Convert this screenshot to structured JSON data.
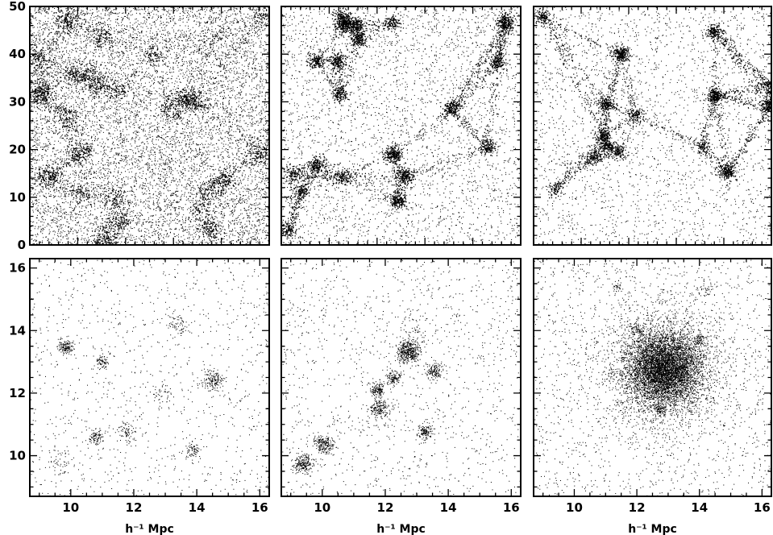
{
  "chart_data": [
    {
      "type": "scatter",
      "panel": "top-left",
      "x_ticks": [],
      "y_ticks": [
        "0",
        "10",
        "20",
        "30",
        "40",
        "50"
      ],
      "xlim": [
        0,
        50
      ],
      "ylim": [
        0,
        50
      ],
      "xlabel": "",
      "ylabel": "",
      "grid": false,
      "legend": "none"
    },
    {
      "type": "scatter",
      "panel": "top-middle",
      "x_ticks": [],
      "y_ticks": [],
      "xlim": [
        0,
        50
      ],
      "ylim": [
        0,
        50
      ],
      "xlabel": "",
      "ylabel": "",
      "grid": false,
      "legend": "none"
    },
    {
      "type": "scatter",
      "panel": "top-right",
      "x_ticks": [],
      "y_ticks": [],
      "xlim": [
        0,
        50
      ],
      "ylim": [
        0,
        50
      ],
      "xlabel": "",
      "ylabel": "",
      "grid": false,
      "legend": "none"
    },
    {
      "type": "scatter",
      "panel": "bottom-left",
      "x_ticks": [
        "10",
        "12",
        "14",
        "16"
      ],
      "y_ticks": [
        "10",
        "12",
        "14",
        "16"
      ],
      "xlim": [
        8.7,
        16.3
      ],
      "ylim": [
        8.7,
        16.3
      ],
      "xlabel": "h⁻¹ Mpc",
      "ylabel": "",
      "grid": false,
      "legend": "none"
    },
    {
      "type": "scatter",
      "panel": "bottom-middle",
      "x_ticks": [
        "10",
        "12",
        "14",
        "16"
      ],
      "y_ticks": [],
      "xlim": [
        8.7,
        16.3
      ],
      "ylim": [
        8.7,
        16.3
      ],
      "xlabel": "h⁻¹ Mpc",
      "ylabel": "",
      "grid": false,
      "legend": "none"
    },
    {
      "type": "scatter",
      "panel": "bottom-right",
      "x_ticks": [
        "10",
        "12",
        "14",
        "16"
      ],
      "y_ticks": [],
      "xlim": [
        8.7,
        16.3
      ],
      "ylim": [
        8.7,
        16.3
      ],
      "xlabel": "h⁻¹ Mpc",
      "ylabel": "",
      "grid": false,
      "legend": "none"
    }
  ],
  "colors": {
    "ink": "#000000",
    "background": "#ffffff"
  }
}
